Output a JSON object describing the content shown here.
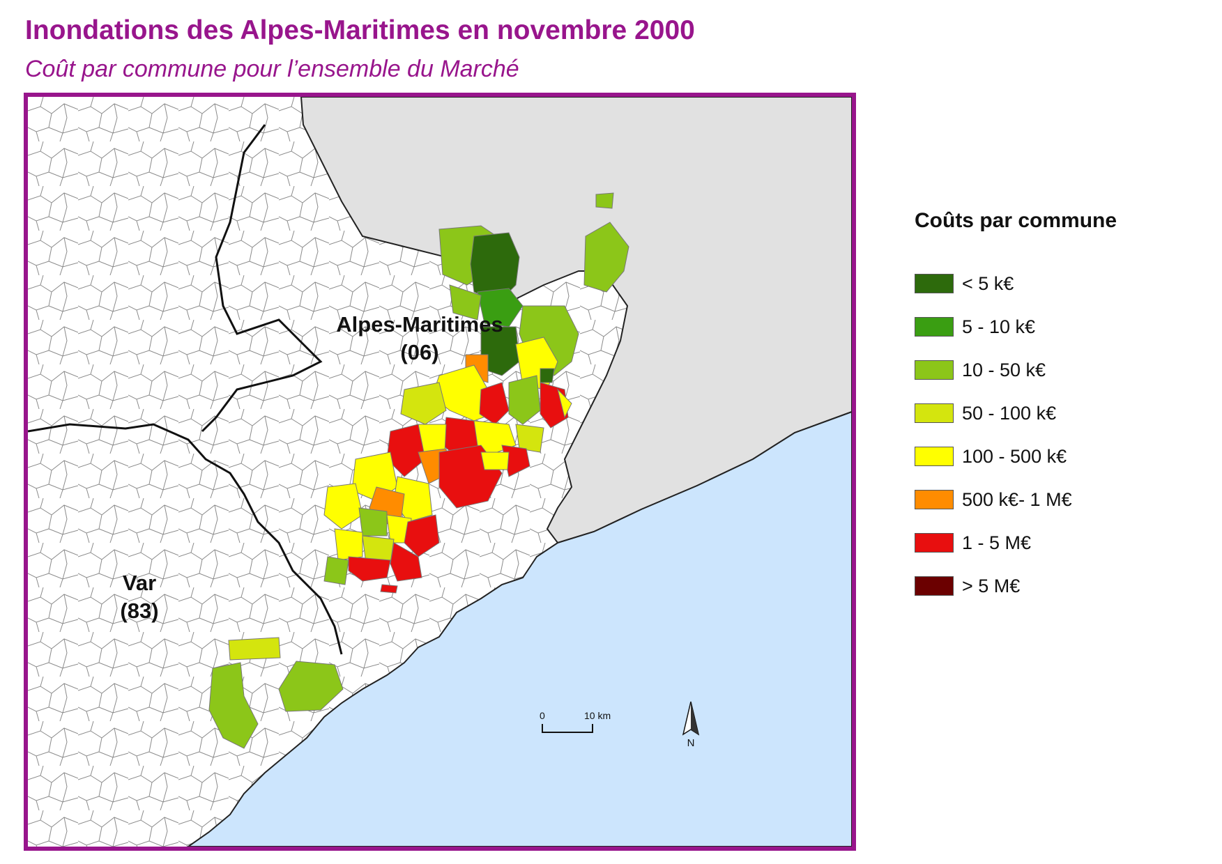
{
  "title": "Inondations des Alpes-Maritimes en novembre 2000",
  "subtitle": "Coût par commune pour l’ensemble du Marché",
  "map": {
    "labels": {
      "dept_06_name": "Alpes-Maritimes",
      "dept_06_code": "(06)",
      "dept_83_name": "Var",
      "dept_83_code": "(83)"
    },
    "scale_bar": {
      "start": "0",
      "end": "10 km"
    },
    "north_arrow": {
      "label": "N",
      "icon": "north-arrow-icon"
    },
    "colors": {
      "sea": "#cce5fd",
      "foreign": "#e1e1e1",
      "land": "#ffffff",
      "border": "#222222"
    }
  },
  "legend": {
    "title": "Coûts par commune",
    "items": [
      {
        "label": "< 5 k€",
        "color": "#2d6a0c"
      },
      {
        "label": "5 - 10 k€",
        "color": "#3a9e12"
      },
      {
        "label": "10 - 50 k€",
        "color": "#8cc619"
      },
      {
        "label": "50 - 100 k€",
        "color": "#d4e50e"
      },
      {
        "label": "100 - 500 k€",
        "color": "#ffff00"
      },
      {
        "label": "500 k€- 1 M€",
        "color": "#ff8c00"
      },
      {
        "label": "1 - 5 M€",
        "color": "#e80f0f"
      },
      {
        "label": "> 5 M€",
        "color": "#6b0000"
      }
    ]
  }
}
